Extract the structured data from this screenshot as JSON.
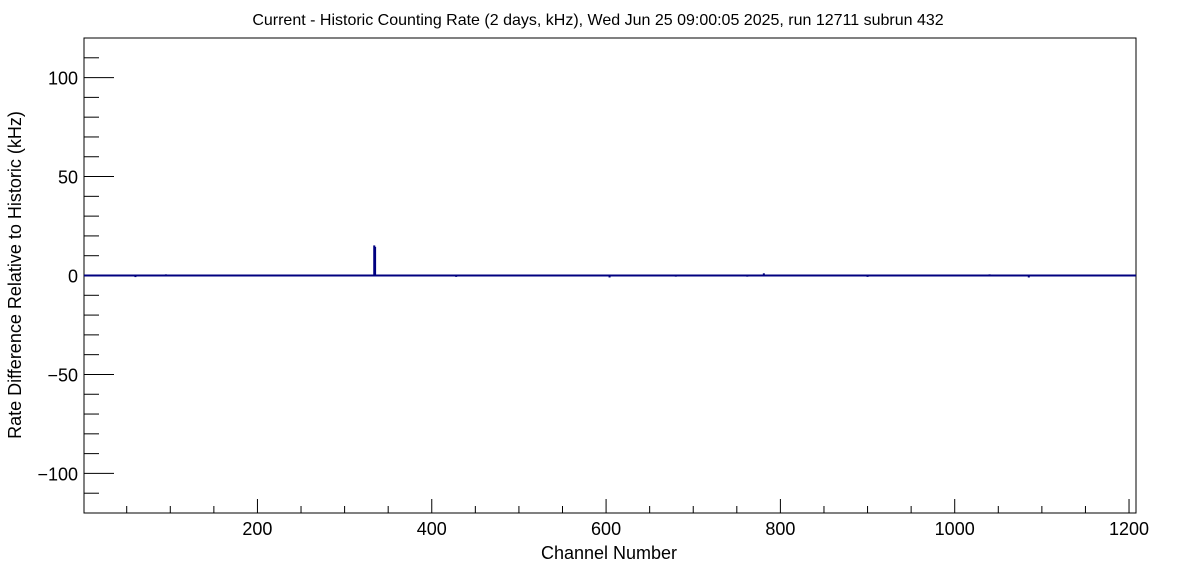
{
  "chart_data": {
    "type": "line",
    "title": "Current - Historic Counting Rate (2 days, kHz), Wed Jun 25 09:00:05 2025, run 12711 subrun 432",
    "xlabel": "Channel Number",
    "ylabel": "Rate Difference Relative to Historic (kHz)",
    "xlim": [
      1,
      1208
    ],
    "ylim": [
      -120,
      120
    ],
    "x_ticks": [
      200,
      400,
      600,
      800,
      1000,
      1200
    ],
    "x_tick_labels": [
      "200",
      "400",
      "600",
      "800",
      "1000",
      "1200"
    ],
    "y_ticks": [
      -100,
      -50,
      0,
      50,
      100
    ],
    "y_tick_labels": [
      "−100",
      "−50",
      "0",
      "50",
      "100"
    ],
    "grid": false,
    "baseline": 0,
    "line_color": "#000080",
    "series": [
      {
        "points": [
          [
            60,
            -0.8
          ],
          [
            95,
            0.6
          ],
          [
            112,
            0.5
          ],
          [
            334,
            15.2
          ],
          [
            335,
            14.5
          ],
          [
            428,
            -0.7
          ],
          [
            604,
            -1.0
          ],
          [
            616,
            0.5
          ],
          [
            680,
            -0.6
          ],
          [
            735,
            -0.5
          ],
          [
            762,
            -0.6
          ],
          [
            781,
            1.1
          ],
          [
            900,
            -0.7
          ],
          [
            905,
            0.5
          ],
          [
            976,
            -0.5
          ],
          [
            1020,
            -0.5
          ],
          [
            1040,
            0.6
          ],
          [
            1085,
            -1.0
          ]
        ]
      }
    ]
  }
}
